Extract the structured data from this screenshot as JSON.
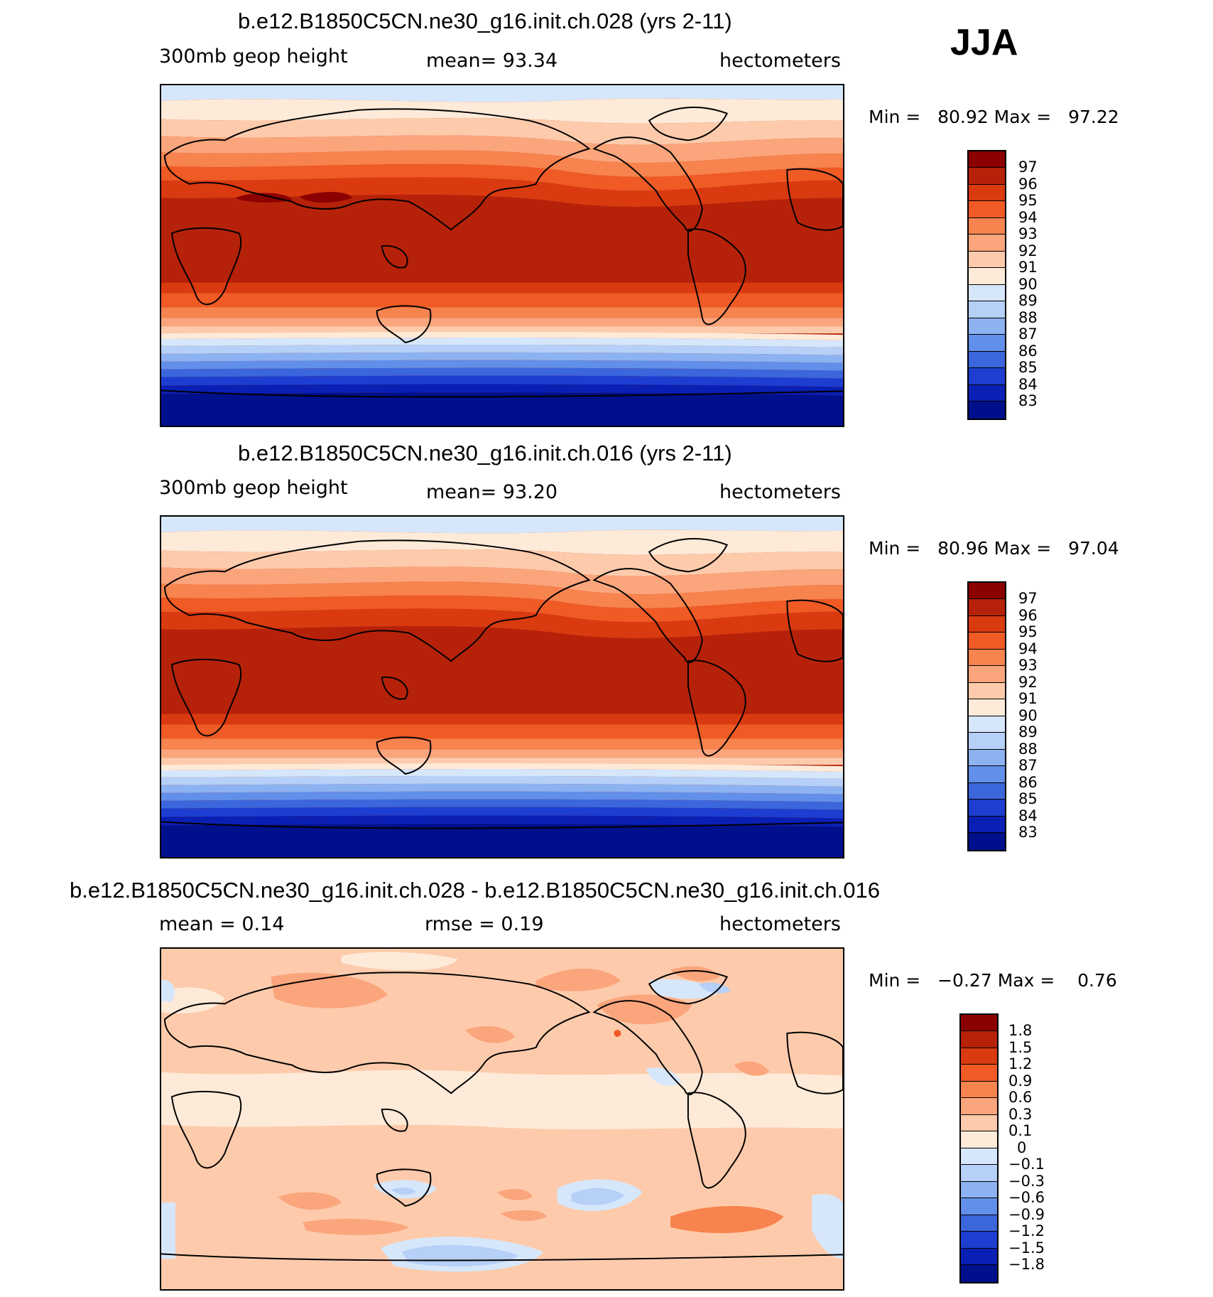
{
  "season": "JJA",
  "palette": {
    "c97": "#8b0000",
    "c96": "#b62209",
    "c95": "#d93a10",
    "c94": "#ef5a25",
    "c93": "#f7834e",
    "c92": "#fba57c",
    "c91": "#fdcbab",
    "c90": "#feead8",
    "c89": "#d6e7fb",
    "c88": "#b6d0f7",
    "c87": "#8db2f1",
    "c86": "#628fe9",
    "c85": "#3b66dc",
    "c84": "#1d3ed0",
    "c83": "#0a1fb4",
    "c82": "#000f8b",
    "land_outline": "#000000"
  },
  "panels": [
    {
      "title": "b.e12.B1850C5CN.ne30_g16.init.ch.028 (yrs 2-11)",
      "variable": "300mb  geop  height",
      "stat": "mean=   93.34",
      "units": "hectometers",
      "min_label": "Min =",
      "min_value": "80.92",
      "max_label": "Max =",
      "max_value": "97.22",
      "legend": [
        "97",
        "96",
        "95",
        "94",
        "93",
        "92",
        "91",
        "90",
        "89",
        "88",
        "87",
        "86",
        "85",
        "84",
        "83"
      ]
    },
    {
      "title": "b.e12.B1850C5CN.ne30_g16.init.ch.016 (yrs 2-11)",
      "variable": "300mb  geop  height",
      "stat": "mean=   93.20",
      "units": "hectometers",
      "min_label": "Min =",
      "min_value": "80.96",
      "max_label": "Max =",
      "max_value": "97.04",
      "legend": [
        "97",
        "96",
        "95",
        "94",
        "93",
        "92",
        "91",
        "90",
        "89",
        "88",
        "87",
        "86",
        "85",
        "84",
        "83"
      ]
    },
    {
      "title": "b.e12.B1850C5CN.ne30_g16.init.ch.028 - b.e12.B1850C5CN.ne30_g16.init.ch.016",
      "stat_left": "mean =     0.14",
      "stat": "rmse =     0.19",
      "units": "hectometers",
      "min_label": "Min =",
      "min_value": "−0.27",
      "max_label": "Max =",
      "max_value": "0.76",
      "legend": [
        "1.8",
        "1.5",
        "1.2",
        "0.9",
        "0.6",
        "0.3",
        "0.1",
        "0",
        "−0.1",
        "−0.3",
        "−0.6",
        "−0.9",
        "−1.2",
        "−1.5",
        "−1.8"
      ]
    }
  ]
}
